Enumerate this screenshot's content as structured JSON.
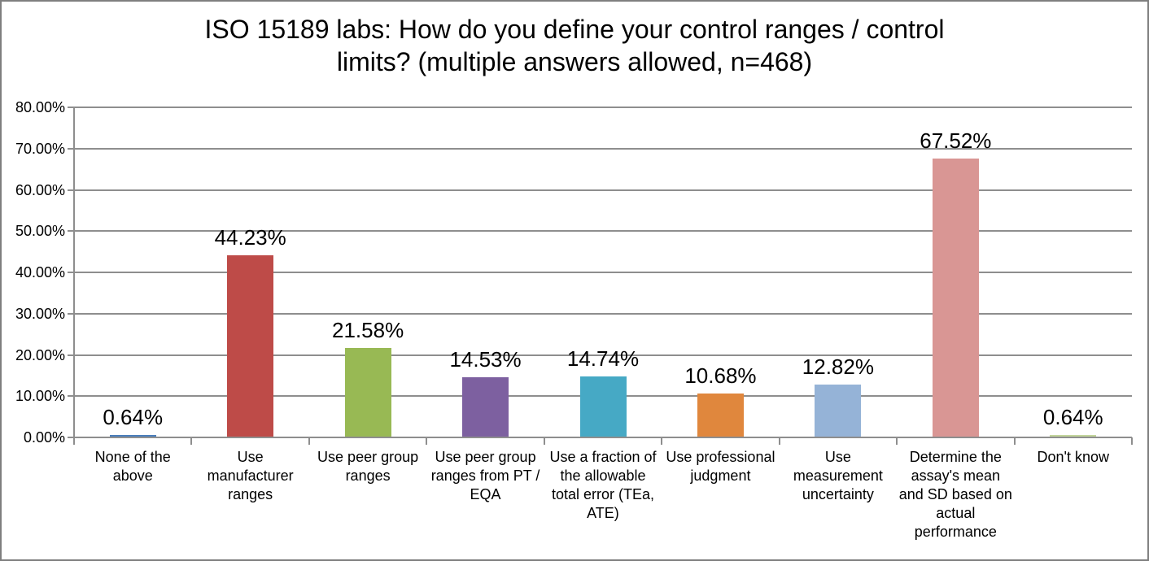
{
  "window": {
    "background": "#ffffff",
    "border_color": "#7f7f7f",
    "axis_color": "#8e8e8e",
    "text_color": "#000000"
  },
  "chart_data": {
    "type": "bar",
    "title": "ISO 15189 labs: How do you define your control ranges / control limits? (multiple answers allowed, n=468)",
    "title_lines": [
      "ISO 15189 labs: How do you define your control ranges / control",
      "limits? (multiple answers allowed, n=468)"
    ],
    "categories": [
      "None of the above",
      "Use manufacturer ranges",
      "Use peer group ranges",
      "Use peer group ranges from PT / EQA",
      "Use a fraction of the allowable total error (TEa, ATE)",
      "Use professional judgment",
      "Use measurement uncertainty",
      "Determine the assay's mean and SD based on actual performance",
      "Don't know"
    ],
    "categories_display": [
      [
        "None of the",
        "above"
      ],
      [
        "Use",
        "manufacturer",
        "ranges"
      ],
      [
        "Use peer group",
        "ranges"
      ],
      [
        "Use peer group",
        "ranges from PT /",
        "EQA"
      ],
      [
        "Use a fraction of",
        "the allowable",
        "total error (TEa,",
        "ATE)"
      ],
      [
        "Use professional",
        "judgment"
      ],
      [
        "Use",
        "measurement",
        "uncertainty"
      ],
      [
        "Determine the",
        "assay's mean",
        "and SD based on",
        "actual",
        "performance"
      ],
      [
        "Don't know"
      ]
    ],
    "values": [
      0.64,
      44.23,
      21.58,
      14.53,
      14.74,
      10.68,
      12.82,
      67.52,
      0.64
    ],
    "data_labels": [
      "0.64%",
      "44.23%",
      "21.58%",
      "14.53%",
      "14.74%",
      "10.68%",
      "12.82%",
      "67.52%",
      "0.64%"
    ],
    "bar_colors": [
      "#4a7ebb",
      "#be4b48",
      "#98b954",
      "#7d60a0",
      "#46a9c5",
      "#e0873d",
      "#95b3d7",
      "#d99694",
      "#c3d69b"
    ],
    "xlabel": "",
    "ylabel": "",
    "y_axis": {
      "min": 0,
      "max": 80,
      "step": 10,
      "tick_labels": [
        "0.00%",
        "10.00%",
        "20.00%",
        "30.00%",
        "40.00%",
        "50.00%",
        "60.00%",
        "70.00%",
        "80.00%"
      ]
    },
    "grid": true,
    "legend": false
  }
}
